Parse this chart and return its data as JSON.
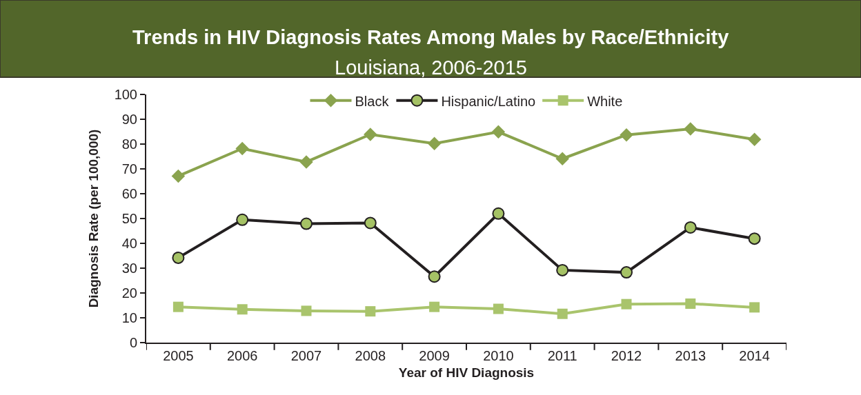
{
  "chart_data": {
    "type": "line",
    "title": "Trends in HIV Diagnosis Rates Among Males by Race/Ethnicity",
    "subtitle": "Louisiana, 2006-2015",
    "xlabel": "Year of HIV Diagnosis",
    "ylabel": "Diagnosis Rate (per 100,000)",
    "categories": [
      "2005",
      "2006",
      "2007",
      "2008",
      "2009",
      "2010",
      "2011",
      "2012",
      "2013",
      "2014"
    ],
    "series": [
      {
        "name": "Black",
        "color": "#8aa34e",
        "marker": "diamond",
        "values": [
          67.1,
          78.2,
          72.8,
          83.9,
          80.2,
          84.9,
          74.1,
          83.7,
          86.1,
          81.9
        ]
      },
      {
        "name": "Hispanic/Latino",
        "color": "#231f20",
        "marker": "circle",
        "values": [
          34.2,
          49.5,
          47.9,
          48.2,
          26.6,
          52.0,
          29.2,
          28.3,
          46.4,
          41.9
        ]
      },
      {
        "name": "White",
        "color": "#a9c46c",
        "marker": "square",
        "values": [
          14.4,
          13.4,
          12.8,
          12.6,
          14.4,
          13.6,
          11.6,
          15.5,
          15.7,
          14.2
        ]
      }
    ],
    "ylim": [
      0,
      100
    ],
    "yticks": [
      0,
      10,
      20,
      30,
      40,
      50,
      60,
      70,
      80,
      90,
      100
    ],
    "legend": "top",
    "line_style": "solid"
  }
}
